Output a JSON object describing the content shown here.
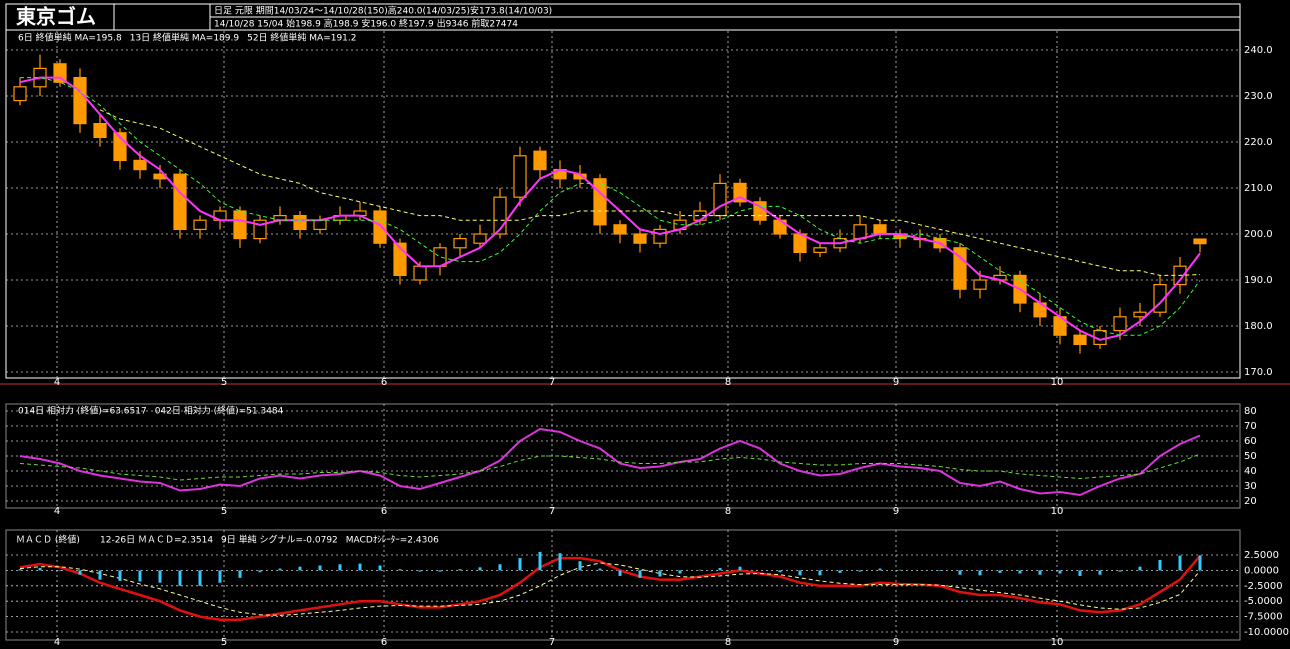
{
  "chart_data": [
    {
      "type": "candlestick",
      "title": "東京ゴム",
      "subtitle": "日足 元限 期間14/03/24～14/10/28(150)高240.0(14/03/25)安173.8(14/10/03)",
      "info": "14/10/28 15/04 始198.9 高198.9 安196.0 終197.9 出9346 前取27474",
      "color": "#ff9900",
      "open": [
        229,
        232,
        237,
        234,
        224,
        222,
        216,
        213,
        213,
        201,
        203,
        205,
        199,
        203,
        204,
        201,
        203,
        204,
        205,
        198,
        190,
        193,
        197,
        198,
        200,
        208,
        218,
        214,
        213,
        212,
        202,
        200,
        198,
        201,
        203,
        204,
        211,
        207,
        203,
        200,
        196,
        197,
        199,
        202,
        200,
        199,
        199,
        197,
        188,
        190,
        191,
        185,
        182,
        178,
        176,
        179,
        182,
        183,
        189,
        198.9
      ],
      "high": [
        234,
        239,
        238,
        236,
        226,
        223,
        218,
        215,
        214,
        204,
        206,
        206,
        204,
        206,
        205,
        204,
        206,
        207,
        206,
        199,
        194,
        198,
        200,
        202,
        210,
        219,
        219,
        216,
        215,
        213,
        203,
        201,
        202,
        205,
        207,
        213,
        212,
        208,
        204,
        201,
        198,
        201,
        204,
        203,
        201,
        201,
        200,
        198,
        192,
        193,
        192,
        187,
        184,
        179,
        180,
        184,
        185,
        191,
        195,
        198.9
      ],
      "low": [
        228,
        230,
        232,
        222,
        219,
        214,
        212,
        210,
        199,
        199,
        201,
        197,
        198,
        202,
        199,
        200,
        202,
        203,
        197,
        189,
        189,
        191,
        195,
        197,
        199,
        206,
        212,
        210,
        210,
        200,
        198,
        196,
        197,
        200,
        202,
        203,
        206,
        202,
        199,
        194,
        195,
        196,
        198,
        199,
        197,
        197,
        196,
        186,
        186,
        189,
        183,
        180,
        176,
        174,
        175,
        177,
        180,
        182,
        187,
        196
      ],
      "close": [
        232,
        236,
        233,
        224,
        221,
        216,
        214,
        212,
        201,
        203,
        205,
        199,
        203,
        204,
        201,
        203,
        204,
        205,
        198,
        191,
        193,
        197,
        199,
        200,
        208,
        217,
        214,
        212,
        212,
        202,
        200,
        198,
        201,
        203,
        205,
        211,
        207,
        203,
        200,
        196,
        197,
        199,
        202,
        200,
        199,
        199,
        197,
        188,
        190,
        191,
        185,
        182,
        178,
        176,
        179,
        182,
        183,
        189,
        193,
        197.9
      ],
      "series": [
        {
          "name": "6日 終値単純 MA=195.8",
          "color": "#ff33ff",
          "dash": false,
          "values": [
            233,
            234,
            234,
            231,
            226,
            221,
            217,
            214,
            209,
            205,
            203,
            203,
            202,
            203,
            203,
            203,
            204,
            204,
            202,
            197,
            193,
            193,
            195,
            197,
            201,
            207,
            212,
            214,
            213,
            209,
            205,
            201,
            200,
            201,
            203,
            206,
            208,
            206,
            203,
            200,
            198,
            198,
            199,
            200,
            200,
            199,
            198,
            195,
            191,
            190,
            188,
            185,
            182,
            179,
            177,
            178,
            181,
            185,
            190,
            195.8
          ]
        },
        {
          "name": "13日 終値単純 MA=189.9",
          "color": "#33ff33",
          "dash": true,
          "values": [
            234,
            234,
            233,
            231,
            228,
            224,
            220,
            217,
            214,
            211,
            207,
            205,
            204,
            203,
            203,
            203,
            203,
            203,
            203,
            201,
            198,
            195,
            194,
            194,
            196,
            200,
            205,
            209,
            211,
            211,
            209,
            206,
            203,
            202,
            202,
            203,
            205,
            206,
            206,
            204,
            201,
            199,
            198,
            199,
            199,
            200,
            199,
            198,
            195,
            192,
            190,
            187,
            184,
            181,
            179,
            178,
            178,
            180,
            184,
            189.9
          ]
        },
        {
          "name": "52日 終値単純 MA=191.2",
          "color": "#ffff66",
          "dash": true,
          "values": [
            null,
            null,
            null,
            null,
            227,
            225,
            224,
            223,
            221,
            219,
            217,
            215,
            213,
            212,
            211,
            209,
            208,
            207,
            206,
            205,
            204,
            204,
            203,
            203,
            203,
            203,
            204,
            204,
            205,
            205,
            205,
            205,
            205,
            204,
            204,
            204,
            204,
            204,
            204,
            204,
            204,
            204,
            204,
            203,
            203,
            202,
            201,
            200,
            199,
            198,
            197,
            196,
            195,
            194,
            193,
            192,
            192,
            191,
            191,
            191.2
          ]
        }
      ],
      "xlim": [
        0,
        60
      ],
      "xticks": [
        {
          "value": 2.35,
          "label": "4"
        },
        {
          "value": 10.7,
          "label": "5"
        },
        {
          "value": 18.7,
          "label": "6"
        },
        {
          "value": 27.1,
          "label": "7"
        },
        {
          "value": 35.9,
          "label": "8"
        },
        {
          "value": 44.3,
          "label": "9"
        },
        {
          "value": 52.35,
          "label": "10"
        }
      ],
      "ylim": [
        170,
        240
      ],
      "yticks": [
        {
          "value": 170,
          "label": "170.0"
        },
        {
          "value": 180,
          "label": "180.0"
        },
        {
          "value": 190,
          "label": "190.0"
        },
        {
          "value": 200,
          "label": "200.0"
        },
        {
          "value": 210,
          "label": "210.0"
        },
        {
          "value": 220,
          "label": "220.0"
        },
        {
          "value": 230,
          "label": "230.0"
        },
        {
          "value": 240,
          "label": "240.0"
        }
      ],
      "grid": true
    },
    {
      "type": "line",
      "series": [
        {
          "name": "014日 相対力 (終値)=63.6517",
          "color": "#dd33dd",
          "dash": false,
          "values": [
            50,
            48,
            45,
            40,
            37,
            35,
            33,
            32,
            27,
            28,
            31,
            30,
            35,
            37,
            35,
            37,
            38,
            40,
            37,
            30,
            28,
            32,
            36,
            40,
            47,
            60,
            68,
            66,
            60,
            55,
            45,
            42,
            43,
            46,
            48,
            55,
            60,
            55,
            45,
            40,
            37,
            38,
            42,
            45,
            43,
            42,
            40,
            32,
            30,
            33,
            28,
            25,
            26,
            24,
            30,
            35,
            38,
            50,
            58,
            63.6517
          ]
        },
        {
          "name": "042日 相対力 (終値)=51.3484",
          "color": "#66dd33",
          "dash": true,
          "values": [
            45,
            44,
            43,
            42,
            40,
            38,
            37,
            36,
            34,
            35,
            36,
            36,
            37,
            38,
            38,
            39,
            39,
            40,
            39,
            37,
            36,
            37,
            38,
            40,
            43,
            47,
            50,
            50,
            49,
            48,
            46,
            45,
            45,
            46,
            46,
            48,
            49,
            48,
            46,
            45,
            44,
            44,
            45,
            45,
            45,
            44,
            43,
            41,
            40,
            40,
            38,
            37,
            36,
            35,
            36,
            37,
            38,
            42,
            46,
            51.3484
          ]
        }
      ],
      "xlim": [
        0,
        60
      ],
      "xticks": [
        {
          "value": 2.35,
          "label": "4"
        },
        {
          "value": 10.7,
          "label": "5"
        },
        {
          "value": 18.7,
          "label": "6"
        },
        {
          "value": 27.1,
          "label": "7"
        },
        {
          "value": 35.9,
          "label": "8"
        },
        {
          "value": 44.3,
          "label": "9"
        },
        {
          "value": 52.35,
          "label": "10"
        }
      ],
      "ylim": [
        20,
        80
      ],
      "yticks": [
        20,
        30,
        40,
        50,
        60,
        70,
        80
      ],
      "grid": true
    },
    {
      "type": "line",
      "title": "ＭＡＣＤ (終値)",
      "series": [
        {
          "name": "12-26日 ＭＡＣＤ=2.3514",
          "color": "#e01010",
          "dash": false,
          "width": 2.5,
          "values": [
            0.5,
            1,
            0.5,
            -0.5,
            -2,
            -3,
            -4,
            -5,
            -6.5,
            -7.5,
            -8,
            -8,
            -7.5,
            -7,
            -6.5,
            -6,
            -5.5,
            -5,
            -5,
            -5.5,
            -6,
            -6,
            -5.5,
            -5,
            -4,
            -2,
            0.5,
            2,
            2,
            1.5,
            0,
            -1,
            -1.5,
            -1.5,
            -1,
            -0.5,
            0,
            -0.5,
            -1,
            -2,
            -2.5,
            -2.5,
            -2.5,
            -2,
            -2.2,
            -2.3,
            -2.5,
            -3.5,
            -4,
            -4,
            -4.5,
            -5.2,
            -5.5,
            -6.5,
            -6.8,
            -6.5,
            -5.5,
            -3.5,
            -1.5,
            2.3514
          ]
        },
        {
          "name": "9日 単純 シグナル=-0.0792",
          "color": "#ffff99",
          "dash": true,
          "values": [
            0.3,
            0.6,
            0.6,
            0.2,
            -0.5,
            -1.3,
            -2.2,
            -3,
            -4,
            -5,
            -6,
            -6.8,
            -7.2,
            -7.3,
            -7.1,
            -6.8,
            -6.5,
            -6.1,
            -5.8,
            -5.7,
            -5.8,
            -5.8,
            -5.7,
            -5.5,
            -5,
            -4,
            -2.5,
            -0.8,
            0.5,
            1.2,
            0.9,
            0.2,
            -0.5,
            -1,
            -1.1,
            -0.9,
            -0.6,
            -0.5,
            -0.7,
            -1.2,
            -1.7,
            -2.1,
            -2.3,
            -2.3,
            -2.3,
            -2.3,
            -2.4,
            -2.8,
            -3.2,
            -3.6,
            -4,
            -4.5,
            -5,
            -5.6,
            -6.1,
            -6.3,
            -6.1,
            -5.2,
            -3.9,
            -0.0792
          ]
        },
        {
          "name": "MACDｵｼﾚｰﾀｰ=2.4306",
          "color": "#33ccff",
          "type": "bar",
          "values": [
            0.2,
            0.4,
            -0.1,
            -0.7,
            -1.5,
            -1.7,
            -1.8,
            -2,
            -2.5,
            -2.5,
            -2,
            -1.2,
            -0.3,
            0.3,
            0.6,
            0.8,
            1,
            1.1,
            0.8,
            0.2,
            -0.2,
            -0.2,
            0.2,
            0.5,
            1,
            2,
            3,
            2.8,
            1.5,
            0.3,
            -0.9,
            -1.2,
            -1,
            -0.5,
            0.1,
            0.4,
            0.6,
            0,
            -0.3,
            -0.8,
            -0.8,
            -0.4,
            -0.2,
            0.3,
            0.1,
            0,
            -0.1,
            -0.7,
            -0.8,
            -0.4,
            -0.5,
            -0.7,
            -0.5,
            -0.9,
            -0.7,
            -0.2,
            0.6,
            1.7,
            2.4,
            2.4306
          ]
        }
      ],
      "xlim": [
        0,
        60
      ],
      "xticks": [
        {
          "value": 2.35,
          "label": "4"
        },
        {
          "value": 10.7,
          "label": "5"
        },
        {
          "value": 18.7,
          "label": "6"
        },
        {
          "value": 27.1,
          "label": "7"
        },
        {
          "value": 35.9,
          "label": "8"
        },
        {
          "value": 44.3,
          "label": "9"
        },
        {
          "value": 52.35,
          "label": "10"
        }
      ],
      "ylim": [
        -10,
        2.5
      ],
      "yticks": [
        {
          "value": 2.5,
          "label": "2.5000"
        },
        {
          "value": 0,
          "label": "0.0000"
        },
        {
          "value": -2.5,
          "label": "-2.5000"
        },
        {
          "value": -5,
          "label": "-5.0000"
        },
        {
          "value": -7.5,
          "label": "-7.5000"
        },
        {
          "value": -10,
          "label": "-10.0000"
        }
      ],
      "grid": true
    }
  ]
}
